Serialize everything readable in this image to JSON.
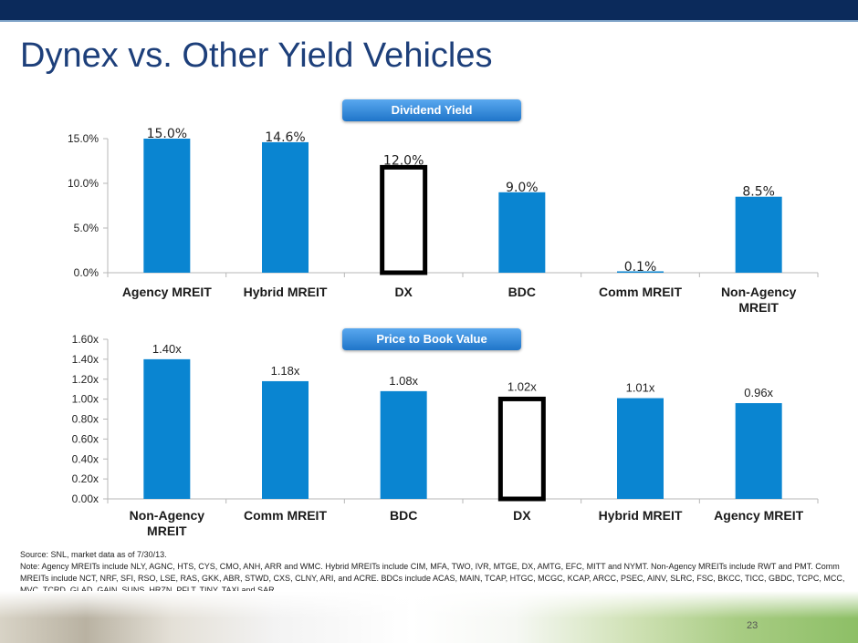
{
  "title": "Dynex vs. Other Yield Vehicles",
  "page_number": "23",
  "footnote": {
    "source": "Source: SNL, market data as of 7/30/13.",
    "note": "Note: Agency MREITs include NLY, AGNC, HTS, CYS, CMO, ANH, ARR and WMC. Hybrid MREITs include CIM, MFA, TWO, IVR, MTGE, DX, AMTG, EFC, MITT and NYMT. Non-Agency MREITs include RWT and PMT. Comm MREITs include NCT, NRF, SFI, RSO, LSE, RAS, GKK, ABR, STWD, CXS, CLNY, ARI, and ACRE. BDCs include ACAS, MAIN, TCAP, HTGC, MCGC, KCAP, ARCC, PSEC, AINV, SLRC, FSC, BKCC, TICC, GBDC, TCPC, MCC, MVC, TCRD, GLAD, GAIN, SUNS, HRZN, PFLT, TINY, TAXI and SAR"
  },
  "colors": {
    "bar": "#0a85d1",
    "highlight_outline": "#000000",
    "band": "#0b2a5b",
    "title": "#1d3f7a"
  },
  "chart_data": [
    {
      "type": "bar",
      "title": "Dividend Yield",
      "categories": [
        "Agency MREIT",
        "Hybrid MREIT",
        "DX",
        "BDC",
        "Comm MREIT",
        "Non-Agency MREIT"
      ],
      "category_lines": [
        [
          "Agency MREIT"
        ],
        [
          "Hybrid MREIT"
        ],
        [
          "DX"
        ],
        [
          "BDC"
        ],
        [
          "Comm MREIT"
        ],
        [
          "Non-Agency",
          "MREIT"
        ]
      ],
      "values": [
        15.0,
        14.6,
        12.0,
        9.0,
        0.1,
        8.5
      ],
      "labels": [
        "15.0%",
        "14.6%",
        "12.0%",
        "9.0%",
        "0.1%",
        "8.5%"
      ],
      "highlight": "DX",
      "ylim": [
        0,
        15
      ],
      "yticks": [
        0,
        5,
        10,
        15
      ],
      "ytick_labels": [
        "0.0%",
        "5.0%",
        "10.0%",
        "15.0%"
      ],
      "grid": false
    },
    {
      "type": "bar",
      "title": "Price to Book Value",
      "categories": [
        "Non-Agency MREIT",
        "Comm MREIT",
        "BDC",
        "DX",
        "Hybrid MREIT",
        "Agency MREIT"
      ],
      "category_lines": [
        [
          "Non-Agency",
          "MREIT"
        ],
        [
          "Comm MREIT"
        ],
        [
          "BDC"
        ],
        [
          "DX"
        ],
        [
          "Hybrid MREIT"
        ],
        [
          "Agency MREIT"
        ]
      ],
      "values": [
        1.4,
        1.18,
        1.08,
        1.02,
        1.01,
        0.96
      ],
      "labels": [
        "1.40x",
        "1.18x",
        "1.08x",
        "1.02x",
        "1.01x",
        "0.96x"
      ],
      "highlight": "DX",
      "ylim": [
        0,
        1.6
      ],
      "yticks": [
        0,
        0.2,
        0.4,
        0.6,
        0.8,
        1.0,
        1.2,
        1.4,
        1.6
      ],
      "ytick_labels": [
        "0.00x",
        "0.20x",
        "0.40x",
        "0.60x",
        "0.80x",
        "1.00x",
        "1.20x",
        "1.40x",
        "1.60x"
      ],
      "grid": false
    }
  ]
}
